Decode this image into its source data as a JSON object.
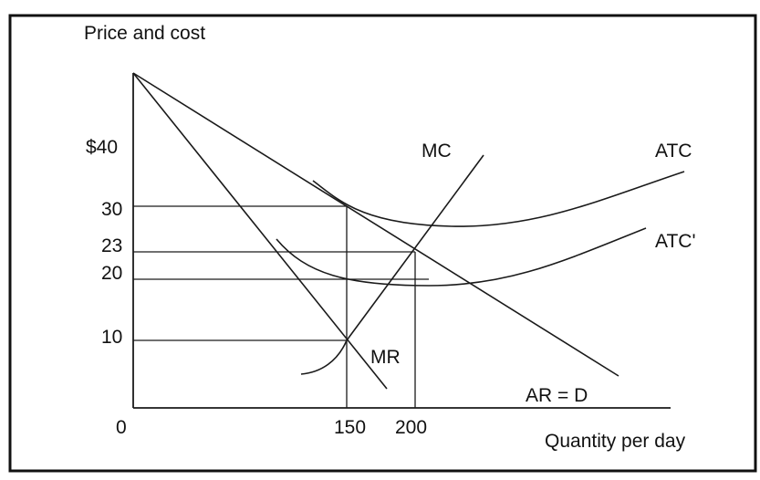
{
  "chart_data": {
    "type": "line",
    "y_axis_label": "Price and cost",
    "x_axis_label": "Quantity per day",
    "origin_label": "0",
    "y_ticks": [
      {
        "value": 40,
        "label": "$40"
      },
      {
        "value": 30,
        "label": "30"
      },
      {
        "value": 23,
        "label": "23"
      },
      {
        "value": 20,
        "label": "20"
      },
      {
        "value": 10,
        "label": "10"
      }
    ],
    "x_ticks": [
      {
        "value": 150,
        "label": "150"
      },
      {
        "value": 200,
        "label": "200"
      }
    ],
    "curve_labels": {
      "mc": "MC",
      "atc": "ATC",
      "atc_prime": "ATC'",
      "mr": "MR",
      "demand": "AR = D"
    },
    "series": [
      {
        "name": "AR = D",
        "points": [
          [
            0,
            50
          ],
          [
            150,
            30
          ],
          [
            200,
            23
          ]
        ]
      },
      {
        "name": "MR",
        "points": [
          [
            0,
            50
          ],
          [
            150,
            10
          ]
        ]
      },
      {
        "name": "MC",
        "points": [
          [
            150,
            10
          ],
          [
            200,
            23
          ]
        ]
      },
      {
        "name": "ATC",
        "points": [
          [
            150,
            30
          ]
        ]
      },
      {
        "name": "ATC'",
        "points": [
          [
            200,
            20
          ]
        ]
      }
    ],
    "guides": [
      {
        "y": 30,
        "x": 150
      },
      {
        "y": 23,
        "x": 200
      },
      {
        "y": 20
      },
      {
        "y": 10,
        "x": 150
      }
    ]
  }
}
